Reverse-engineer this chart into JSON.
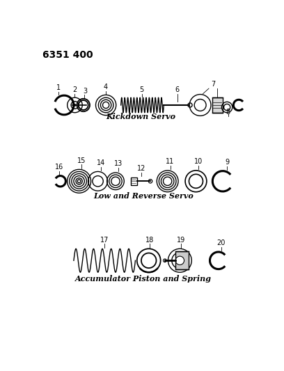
{
  "title": "6351 400",
  "bg_color": "#ffffff",
  "text_color": "#000000",
  "section1_label": "Kickdown Servo",
  "section2_label": "Low and Reverse Servo",
  "section3_label": "Accumulator Piston and Spring",
  "line_color": "#000000",
  "lw": 1.0
}
